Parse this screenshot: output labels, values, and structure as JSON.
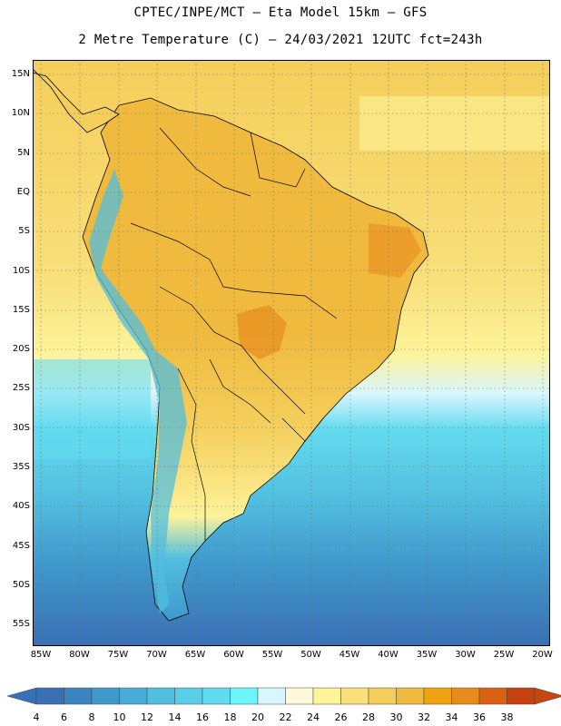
{
  "header": {
    "title_line1": "CPTEC/INPE/MCT –  Eta Model 15km – GFS",
    "title_line2": "2 Metre Temperature (C) – 24/03/2021 12UTC fct=243h"
  },
  "map": {
    "lat_labels": [
      "15N",
      "10N",
      "5N",
      "EQ",
      "5S",
      "10S",
      "15S",
      "20S",
      "25S",
      "30S",
      "35S",
      "40S",
      "45S",
      "50S",
      "55S"
    ],
    "lon_labels": [
      "85W",
      "80W",
      "75W",
      "70W",
      "65W",
      "60W",
      "55W",
      "50W",
      "45W",
      "40W",
      "35W",
      "30W",
      "25W",
      "20W"
    ]
  },
  "colorbar": {
    "labels": [
      "4",
      "6",
      "8",
      "10",
      "12",
      "14",
      "16",
      "18",
      "20",
      "22",
      "24",
      "26",
      "28",
      "30",
      "32",
      "34",
      "36",
      "38"
    ],
    "colors": [
      "#3a6fb4",
      "#3b84c0",
      "#3f99cb",
      "#49acd6",
      "#52bedf",
      "#5ccde6",
      "#63dbef",
      "#6cf6fb",
      "#d8f6fd",
      "#fff9dc",
      "#fdf39a",
      "#f9e07b",
      "#f4ce5a",
      "#efba3e",
      "#f0a310",
      "#e78c1c",
      "#d96212",
      "#c54210"
    ],
    "end_low_color": "#3770ba",
    "end_high_color": "#c24810"
  }
}
